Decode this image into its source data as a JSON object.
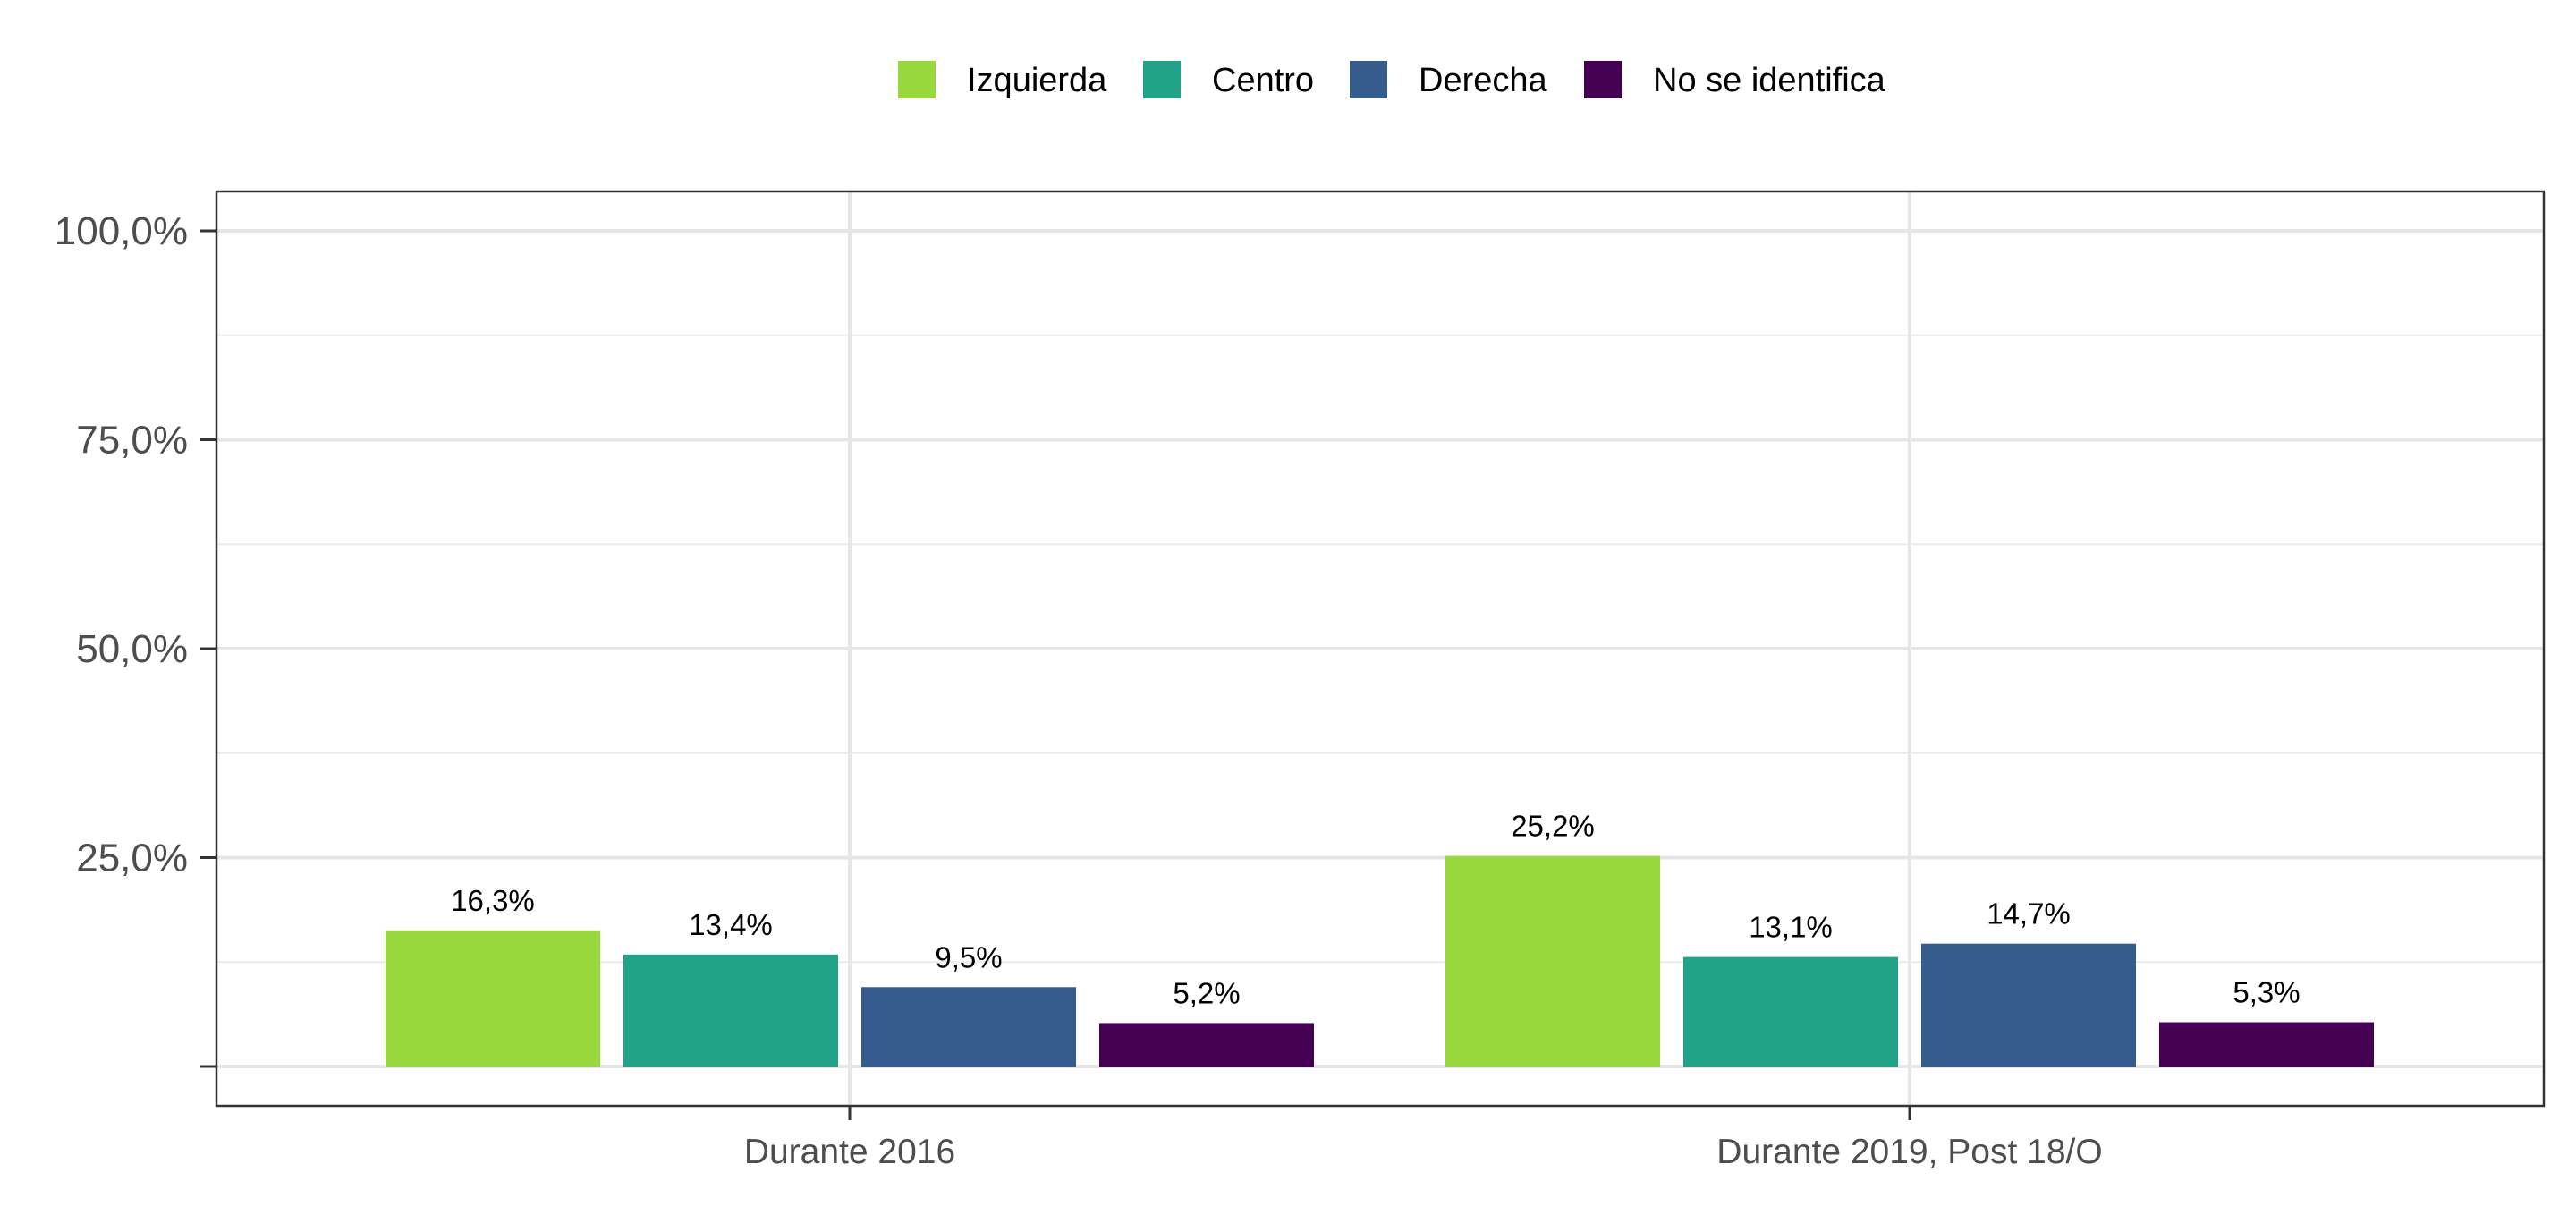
{
  "chart_data": {
    "type": "bar",
    "categories": [
      "Durante 2016",
      "Durante 2019, Post 18/O"
    ],
    "series": [
      {
        "name": "Izquierda",
        "color": "#99d83d",
        "values": [
          16.3,
          25.2
        ],
        "labels": [
          "16,3%",
          "25,2%"
        ]
      },
      {
        "name": "Centro",
        "color": "#20a386",
        "values": [
          13.4,
          13.1
        ],
        "labels": [
          "13,4%",
          "13,1%"
        ]
      },
      {
        "name": "Derecha",
        "color": "#365c8d",
        "values": [
          9.5,
          14.7
        ],
        "labels": [
          "9,5%",
          "14,7%"
        ]
      },
      {
        "name": "No se identifica",
        "color": "#440154",
        "values": [
          5.2,
          5.3
        ],
        "labels": [
          "5,2%",
          "5,3%"
        ]
      }
    ],
    "ylim": [
      0,
      100
    ],
    "yticks": [
      0,
      25,
      50,
      75,
      100
    ],
    "ytick_labels": [
      "",
      "25,0%",
      "50,0%",
      "75,0%",
      "100,0%"
    ],
    "y_minor_gridlines": [
      12.5,
      37.5,
      62.5,
      87.5
    ],
    "grid": true,
    "legend_position": "top",
    "title": "",
    "xlabel": "",
    "ylabel": ""
  }
}
